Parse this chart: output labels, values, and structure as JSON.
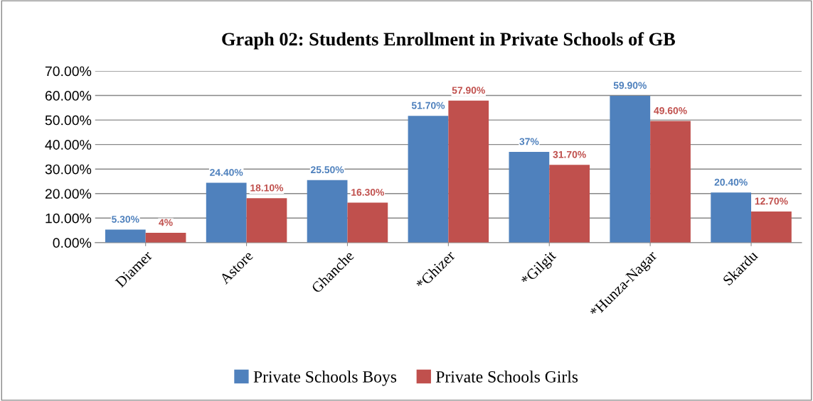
{
  "chart_data": {
    "type": "bar",
    "title": "Graph 02: Students Enrollment in Private Schools of GB",
    "categories": [
      "Diamer",
      "Astore",
      "Ghanche",
      "*Ghizer",
      "*Gilgit",
      "*Hunza-Nagar",
      "Skardu"
    ],
    "series": [
      {
        "name": "Private Schools Boys",
        "color": "#4f81bd",
        "values": [
          5.3,
          24.4,
          25.5,
          51.7,
          37,
          59.9,
          20.4
        ],
        "value_labels": [
          "5.30%",
          "24.40%",
          "25.50%",
          "51.70%",
          "37%",
          "59.90%",
          "20.40%"
        ]
      },
      {
        "name": "Private Schools Girls",
        "color": "#c0504d",
        "values": [
          4,
          18.1,
          16.3,
          57.9,
          31.7,
          49.6,
          12.7
        ],
        "value_labels": [
          "4%",
          "18.10%",
          "16.30%",
          "57.90%",
          "31.70%",
          "49.60%",
          "12.70%"
        ]
      }
    ],
    "ylim": [
      0,
      70
    ],
    "yticks": [
      {
        "value": 0,
        "label": "0.00%"
      },
      {
        "value": 10,
        "label": "10.00%"
      },
      {
        "value": 20,
        "label": "20.00%"
      },
      {
        "value": 30,
        "label": "30.00%"
      },
      {
        "value": 40,
        "label": "40.00%"
      },
      {
        "value": 50,
        "label": "50.00%"
      },
      {
        "value": 60,
        "label": "60.00%"
      },
      {
        "value": 70,
        "label": "70.00%"
      }
    ],
    "grid": "y",
    "legend": "bottom"
  }
}
